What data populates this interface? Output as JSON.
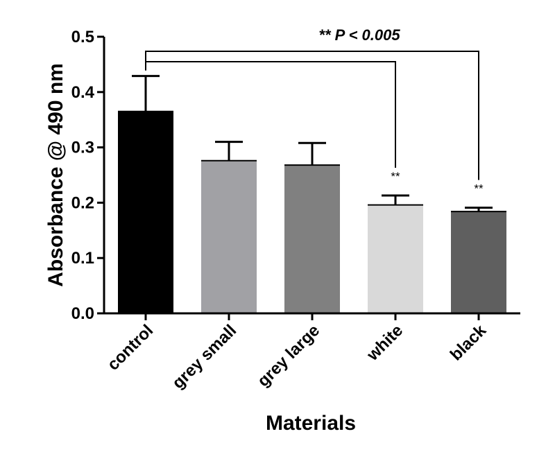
{
  "chart_data": {
    "type": "bar",
    "title": "",
    "xlabel": "Materials",
    "ylabel": "Absorbance @ 490 nm",
    "ylim": [
      0.0,
      0.5
    ],
    "yticks": [
      "0.0",
      "0.1",
      "0.2",
      "0.3",
      "0.4",
      "0.5"
    ],
    "categories": [
      "control",
      "grey small",
      "grey large",
      "white",
      "black"
    ],
    "values": [
      0.365,
      0.276,
      0.268,
      0.196,
      0.184
    ],
    "errors": [
      0.064,
      0.034,
      0.04,
      0.017,
      0.007
    ],
    "colors": [
      "#000000",
      "#a1a1a5",
      "#808080",
      "#d9d9d9",
      "#5f5f5f"
    ],
    "grid": false,
    "annotations": {
      "significance_text": "** P < 0.005",
      "bar_markers": [
        {
          "category": "white",
          "text": "**"
        },
        {
          "category": "black",
          "text": "**"
        }
      ],
      "comparisons": [
        {
          "from": "control",
          "to": "white"
        },
        {
          "from": "control",
          "to": "black"
        }
      ]
    }
  }
}
